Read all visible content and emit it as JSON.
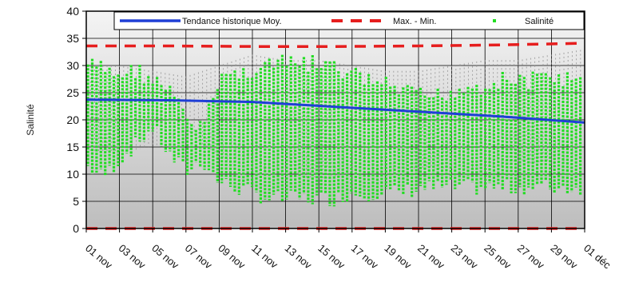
{
  "chart_data": {
    "type": "line",
    "xlabel": "",
    "ylabel": "Salinité",
    "ylim": [
      0,
      40
    ],
    "y_ticks": [
      0,
      5,
      10,
      15,
      20,
      25,
      30,
      35,
      40
    ],
    "x_tick_labels": [
      "01 nov",
      "03 nov",
      "05 nov",
      "07 nov",
      "09 nov",
      "11 nov",
      "13 nov",
      "15 nov",
      "17 nov",
      "19 nov",
      "21 nov",
      "23 nov",
      "25 nov",
      "27 nov",
      "29 nov",
      "01 déc"
    ],
    "x_range_days": [
      0,
      30
    ],
    "grid": true,
    "legend_position": "top",
    "legend": [
      {
        "label": "Tendance historique Moy.",
        "style": "solid-line",
        "color": "#1f3fd6"
      },
      {
        "label": "Max. - Min.",
        "style": "dashed-line",
        "color": "#e61e1e"
      },
      {
        "label": "Salinité",
        "style": "marker",
        "color": "#22dd22"
      }
    ],
    "series": [
      {
        "name": "Tendance historique Moy.",
        "color": "#1f3fd6",
        "x": [
          0,
          5,
          10,
          15,
          20,
          25,
          30
        ],
        "y": [
          23.7,
          23.6,
          23.3,
          22.4,
          21.5,
          20.6,
          19.5
        ]
      },
      {
        "name": "Max. - Min.",
        "color": "#e61e1e",
        "x": [
          0,
          5,
          10,
          15,
          20,
          25,
          30
        ],
        "y": [
          33.6,
          33.6,
          33.5,
          33.5,
          33.6,
          33.8,
          34.1
        ]
      },
      {
        "name": "Max. - Min.",
        "color": "#e61e1e",
        "x": [
          0,
          30
        ],
        "y": [
          0,
          0
        ]
      }
    ],
    "salinity_envelope": {
      "name": "Salinité",
      "color": "#22dd22",
      "x": [
        0,
        1,
        2,
        3,
        4,
        5,
        6,
        7,
        8,
        9,
        10,
        11,
        12,
        13,
        14,
        15,
        16,
        17,
        18,
        19,
        20,
        21,
        22,
        23,
        24,
        25,
        26,
        27,
        28,
        29,
        30
      ],
      "y_max": [
        32,
        31,
        30,
        31,
        29,
        27,
        22,
        20,
        30,
        30,
        31,
        32,
        32,
        32,
        32,
        31,
        30,
        29,
        28,
        27,
        26,
        26,
        27,
        28,
        28,
        29,
        29,
        29,
        30,
        29,
        29
      ],
      "y_min": [
        10,
        8,
        11,
        14,
        17,
        12,
        9,
        11,
        7,
        6,
        5,
        4,
        4,
        4,
        4,
        4,
        5,
        5,
        5,
        5,
        6,
        6,
        6,
        6,
        6,
        6,
        6,
        6,
        6,
        6,
        6
      ]
    },
    "historical_envelope": {
      "name": "historical-range",
      "color": "#8a8a8a",
      "x": [
        0,
        2,
        4,
        6,
        8,
        10,
        12,
        14,
        16,
        18,
        20,
        22,
        24,
        26,
        28,
        30
      ],
      "y_max": [
        30,
        30,
        29,
        28,
        30,
        32,
        31,
        31,
        30,
        29,
        29,
        30,
        31,
        31,
        32,
        33
      ],
      "y_min": [
        14,
        14,
        15,
        18,
        13,
        11,
        10,
        9,
        10,
        10,
        11,
        11,
        11,
        12,
        12,
        13
      ]
    }
  }
}
